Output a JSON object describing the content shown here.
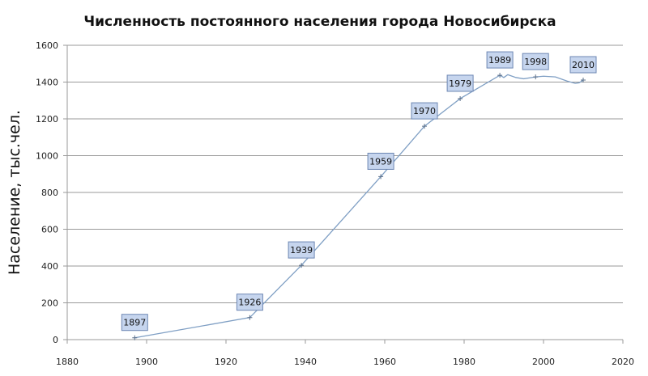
{
  "chart_data": {
    "type": "line",
    "title": "Численность постоянного  населения города  Новосибирска",
    "xlabel": "",
    "ylabel": "Население,  тыс.чел.",
    "xlim": [
      1880,
      2020
    ],
    "ylim": [
      0,
      1600
    ],
    "xticks": [
      1880,
      1900,
      1920,
      1940,
      1960,
      1980,
      2000,
      2020
    ],
    "yticks": [
      0,
      200,
      400,
      600,
      800,
      1000,
      1200,
      1400,
      1600
    ],
    "grid": "horizontal",
    "labeled_points": [
      {
        "x": 1897,
        "y": 10,
        "label": "1897"
      },
      {
        "x": 1926,
        "y": 120,
        "label": "1926"
      },
      {
        "x": 1939,
        "y": 404,
        "label": "1939"
      },
      {
        "x": 1959,
        "y": 886,
        "label": "1959"
      },
      {
        "x": 1970,
        "y": 1160,
        "label": "1970"
      },
      {
        "x": 1979,
        "y": 1310,
        "label": "1979"
      },
      {
        "x": 1989,
        "y": 1437,
        "label": "1989"
      },
      {
        "x": 1998,
        "y": 1428,
        "label": "1998"
      },
      {
        "x": 2010,
        "y": 1411,
        "label": "2010"
      }
    ],
    "series": [
      {
        "name": "Население",
        "x": [
          1897,
          1926,
          1939,
          1959,
          1970,
          1979,
          1989,
          1990,
          1991,
          1993,
          1995,
          1998,
          2000,
          2003,
          2006,
          2008,
          2009,
          2010
        ],
        "y": [
          10,
          120,
          404,
          886,
          1160,
          1310,
          1437,
          1425,
          1440,
          1425,
          1418,
          1428,
          1432,
          1428,
          1405,
          1393,
          1396,
          1411
        ],
        "color": "#7f9fc4"
      }
    ]
  }
}
